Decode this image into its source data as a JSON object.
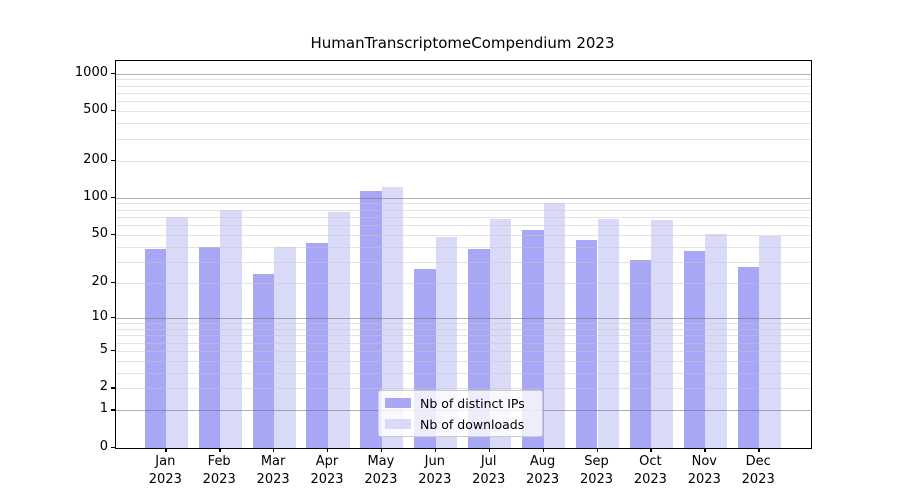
{
  "chart_data": {
    "type": "bar",
    "title": "HumanTranscriptomeCompendium 2023",
    "categories": [
      "Jan",
      "Feb",
      "Mar",
      "Apr",
      "May",
      "Jun",
      "Jul",
      "Aug",
      "Sep",
      "Oct",
      "Nov",
      "Dec"
    ],
    "year": "2023",
    "series": [
      {
        "name": "Nb of distinct IPs",
        "color": "#a7a7f5",
        "values": [
          38,
          40,
          24,
          43,
          113,
          26,
          38,
          55,
          45,
          31,
          37,
          27
        ]
      },
      {
        "name": "Nb of downloads",
        "color": "#d9d9f8",
        "values": [
          70,
          80,
          40,
          77,
          122,
          48,
          67,
          90,
          67,
          66,
          51,
          49
        ]
      }
    ],
    "yscale": "log1p",
    "ylim": [
      0,
      1260
    ],
    "yticks": [
      1000,
      500,
      200,
      100,
      50,
      20,
      10,
      5,
      2,
      1,
      0
    ],
    "major_grid_values": [
      1,
      10,
      100,
      1000
    ],
    "legend_position": "lower center",
    "colors": {
      "major_grid": "#aeaeae",
      "minor_grid": "#e5e5e5",
      "axis": "#000000",
      "background": "#ffffff"
    }
  }
}
